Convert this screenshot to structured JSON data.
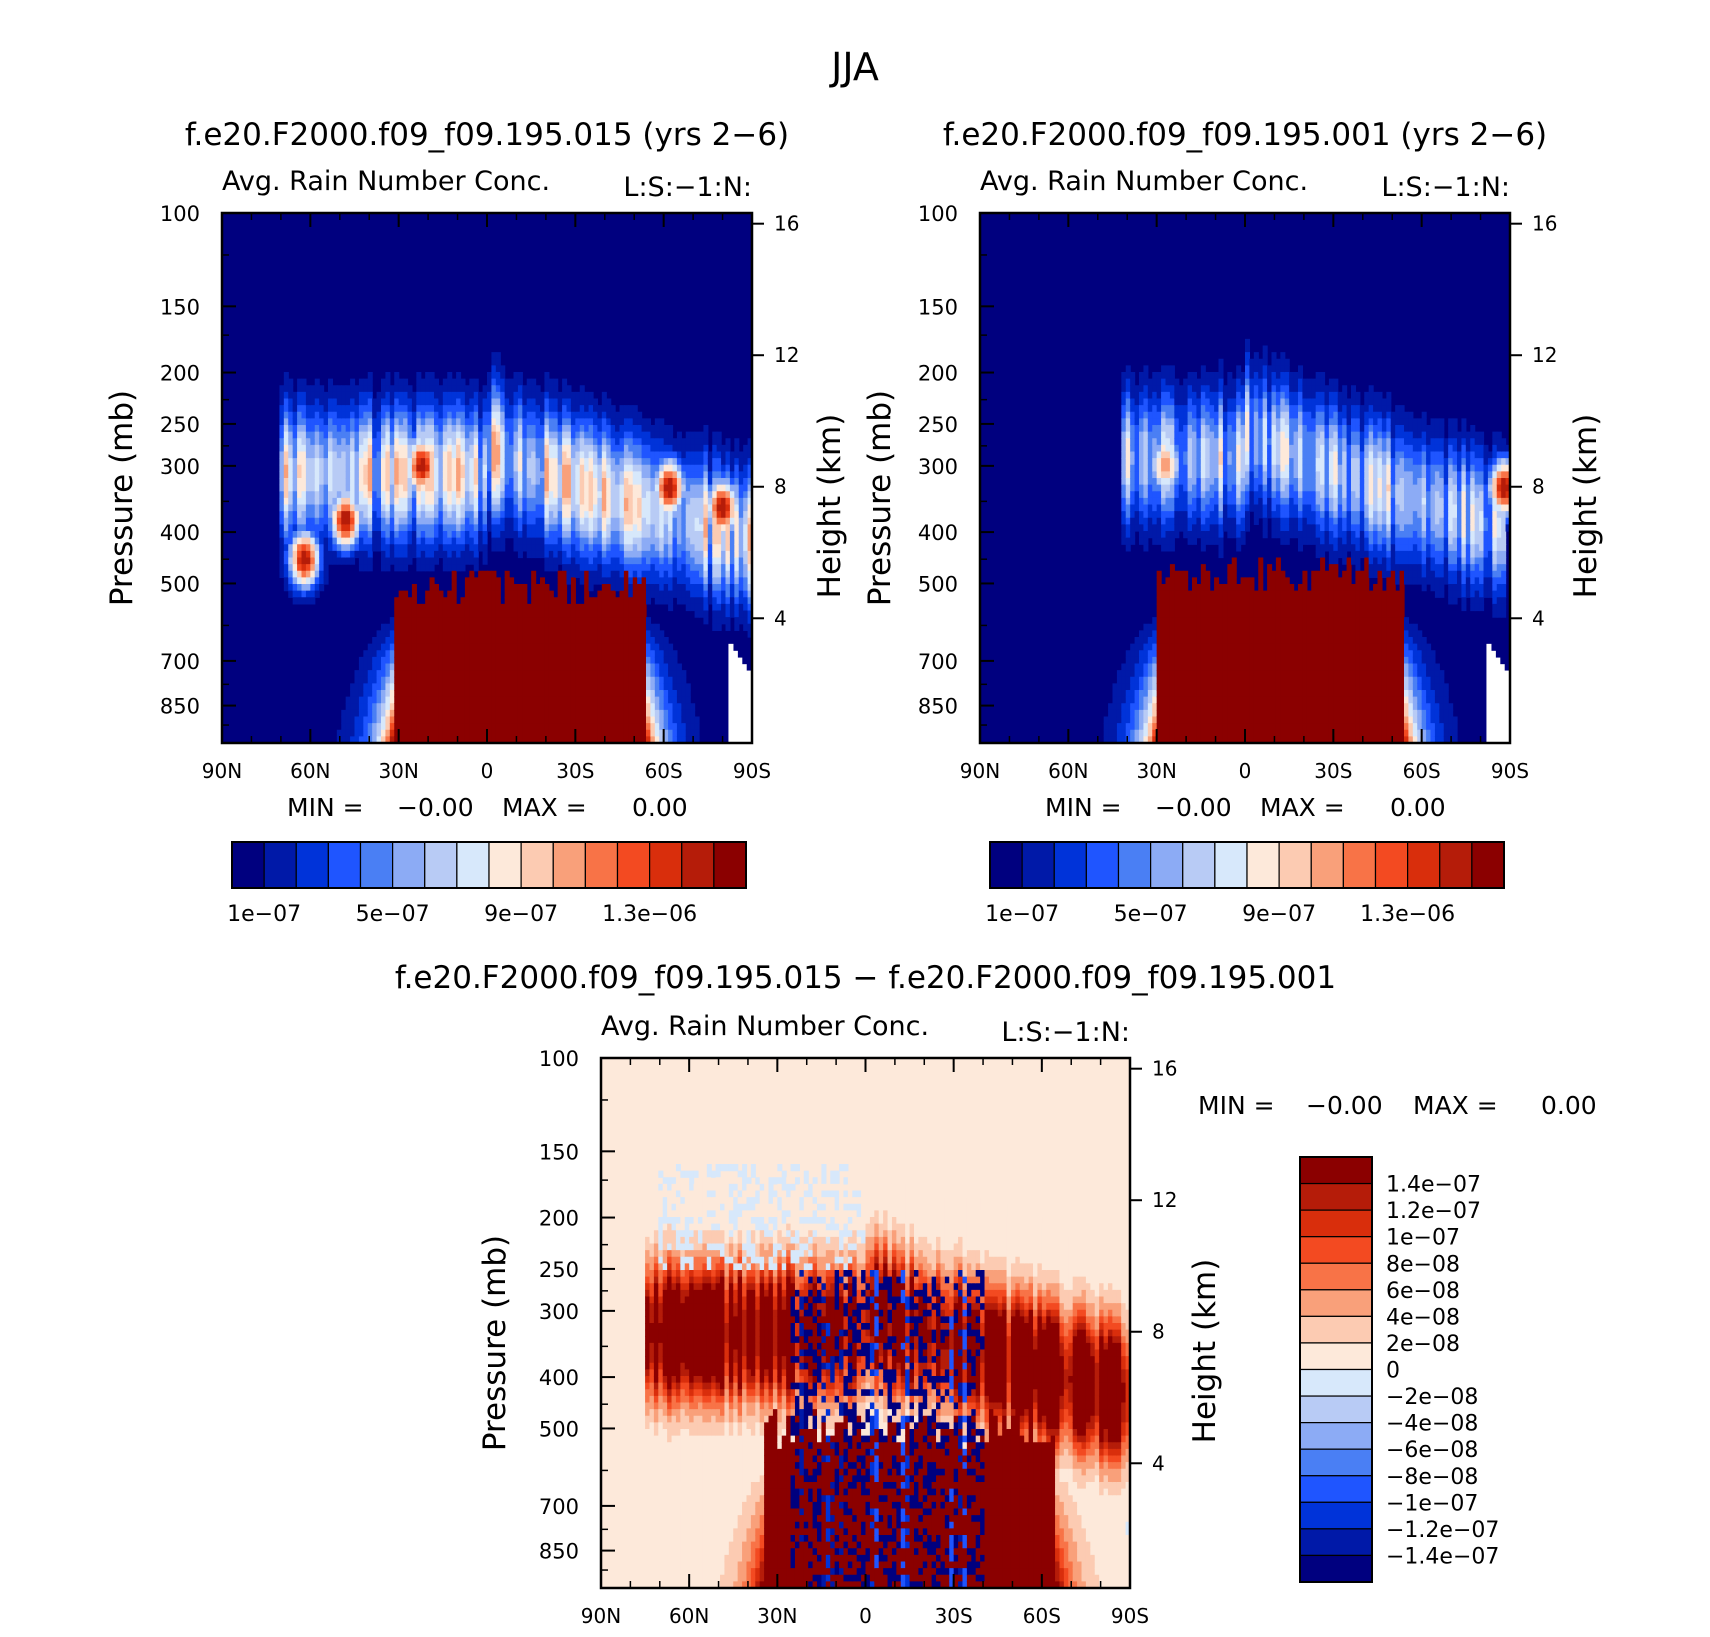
{
  "figure_title": "JJA",
  "colors": {
    "seq": [
      "#00007f",
      "#0019a8",
      "#0033d9",
      "#1f55ff",
      "#4a7ff4",
      "#8cabf5",
      "#b8cbf5",
      "#d7e8fb",
      "#fde9da",
      "#fccbb2",
      "#f9a07a",
      "#f87347",
      "#f34a21",
      "#d92e0c",
      "#b51c09",
      "#8b0000"
    ],
    "diff": [
      "#00007f",
      "#0019a8",
      "#0033d9",
      "#1f55ff",
      "#4a7ff4",
      "#8cabf5",
      "#b8cbf5",
      "#d7e8fb",
      "#fde9da",
      "#fccbb2",
      "#f9a07a",
      "#f87347",
      "#f34a21",
      "#d92e0c",
      "#b51c09",
      "#8b0000"
    ]
  },
  "chart_data": [
    {
      "type": "heatmap",
      "id": "case1",
      "title": "f.e20.F2000.f09_f09.195.015 (yrs 2-6)",
      "left_label": "Avg. Rain Number Conc.",
      "right_label": "L:S:-1:N:",
      "xlabel": "",
      "ylabel": "Pressure (mb)",
      "ylabel_right": "Height (km)",
      "x_ticks": [
        "90N",
        "60N",
        "30N",
        "0",
        "30S",
        "60S",
        "90S"
      ],
      "y_ticks": [
        "100",
        "150",
        "200",
        "250",
        "300",
        "400",
        "500",
        "700",
        "850"
      ],
      "y_tick_values": [
        100,
        150,
        200,
        250,
        300,
        400,
        500,
        700,
        850
      ],
      "ylim": [
        100,
        1000
      ],
      "height_ticks": [
        "16",
        "12",
        "8",
        "4"
      ],
      "height_tick_values": [
        16,
        12,
        8,
        4
      ],
      "stats": {
        "min_label": "MIN =",
        "min_value": "-0.00",
        "max_label": "MAX =",
        "max_value": "0.00"
      },
      "colorbar_labels": [
        "1e-07",
        "5e-07",
        "9e-07",
        "1.3e-06"
      ],
      "features": [
        {
          "kind": "surface_rain",
          "lat_from": -54,
          "lat_to": 32,
          "top_p": 510,
          "value": 1.5e-06
        },
        {
          "kind": "upper_band",
          "lat_from": -90,
          "lat_to": 70,
          "center_p": 310,
          "value": 6e-07
        },
        {
          "kind": "core",
          "lat": -80,
          "p": 360,
          "value": 1.5e-06
        },
        {
          "kind": "core",
          "lat": -62,
          "p": 330,
          "value": 1.5e-06
        },
        {
          "kind": "core",
          "lat": 22,
          "p": 300,
          "value": 1.5e-06
        },
        {
          "kind": "core",
          "lat": 48,
          "p": 380,
          "value": 1.5e-06
        },
        {
          "kind": "core",
          "lat": 62,
          "p": 450,
          "value": 1.5e-06
        }
      ]
    },
    {
      "type": "heatmap",
      "id": "case2",
      "title": "f.e20.F2000.f09_f09.195.001 (yrs 2-6)",
      "left_label": "Avg. Rain Number Conc.",
      "right_label": "L:S:-1:N:",
      "xlabel": "",
      "ylabel": "Pressure (mb)",
      "ylabel_right": "Height (km)",
      "x_ticks": [
        "90N",
        "60N",
        "30N",
        "0",
        "30S",
        "60S",
        "90S"
      ],
      "y_ticks": [
        "100",
        "150",
        "200",
        "250",
        "300",
        "400",
        "500",
        "700",
        "850"
      ],
      "y_tick_values": [
        100,
        150,
        200,
        250,
        300,
        400,
        500,
        700,
        850
      ],
      "ylim": [
        100,
        1000
      ],
      "height_ticks": [
        "16",
        "12",
        "8",
        "4"
      ],
      "height_tick_values": [
        16,
        12,
        8,
        4
      ],
      "stats": {
        "min_label": "MIN =",
        "min_value": "-0.00",
        "max_label": "MAX =",
        "max_value": "0.00"
      },
      "colorbar_labels": [
        "1e-07",
        "5e-07",
        "9e-07",
        "1.3e-06"
      ],
      "features": [
        {
          "kind": "surface_rain",
          "lat_from": -54,
          "lat_to": 30,
          "top_p": 480,
          "value": 1.5e-06
        },
        {
          "kind": "upper_band",
          "lat_from": -88,
          "lat_to": 42,
          "center_p": 290,
          "value": 5e-07
        },
        {
          "kind": "core",
          "lat": -88,
          "p": 330,
          "value": 1.5e-06
        },
        {
          "kind": "core",
          "lat": 27,
          "p": 300,
          "value": 1.1e-06
        }
      ]
    },
    {
      "type": "heatmap",
      "id": "difference",
      "title": "f.e20.F2000.f09_f09.195.015 - f.e20.F2000.f09_f09.195.001",
      "left_label": "Avg. Rain Number Conc.",
      "right_label": "L:S:-1:N:",
      "xlabel": "",
      "ylabel": "Pressure (mb)",
      "ylabel_right": "Height (km)",
      "x_ticks": [
        "90N",
        "60N",
        "30N",
        "0",
        "30S",
        "60S",
        "90S"
      ],
      "y_ticks": [
        "100",
        "150",
        "200",
        "250",
        "300",
        "400",
        "500",
        "700",
        "850"
      ],
      "y_tick_values": [
        100,
        150,
        200,
        250,
        300,
        400,
        500,
        700,
        850
      ],
      "ylim": [
        100,
        1000
      ],
      "height_ticks": [
        "16",
        "12",
        "8",
        "4"
      ],
      "height_tick_values": [
        16,
        12,
        8,
        4
      ],
      "stats": {
        "min_label": "MIN =",
        "min_value": "-0.00",
        "max_label": "MAX =",
        "max_value": "0.00"
      },
      "colorbar_labels": [
        "1.4e-07",
        "1.2e-07",
        "1e-07",
        "8e-08",
        "6e-08",
        "4e-08",
        "2e-08",
        "0",
        "-2e-08",
        "-4e-08",
        "-6e-08",
        "-8e-08",
        "-1e-07",
        "-1.2e-07",
        "-1.4e-07"
      ],
      "features": [
        {
          "kind": "positive_band",
          "lat_from": -90,
          "lat_to": 75,
          "center_p": 330,
          "value": 1.6e-07
        },
        {
          "kind": "positive_surface",
          "lat_from": -65,
          "lat_to": 35,
          "top_p": 500,
          "value": 1.6e-07
        },
        {
          "kind": "negative_cells",
          "lat_from": -40,
          "lat_to": 20,
          "value": -1.6e-07
        }
      ]
    }
  ]
}
